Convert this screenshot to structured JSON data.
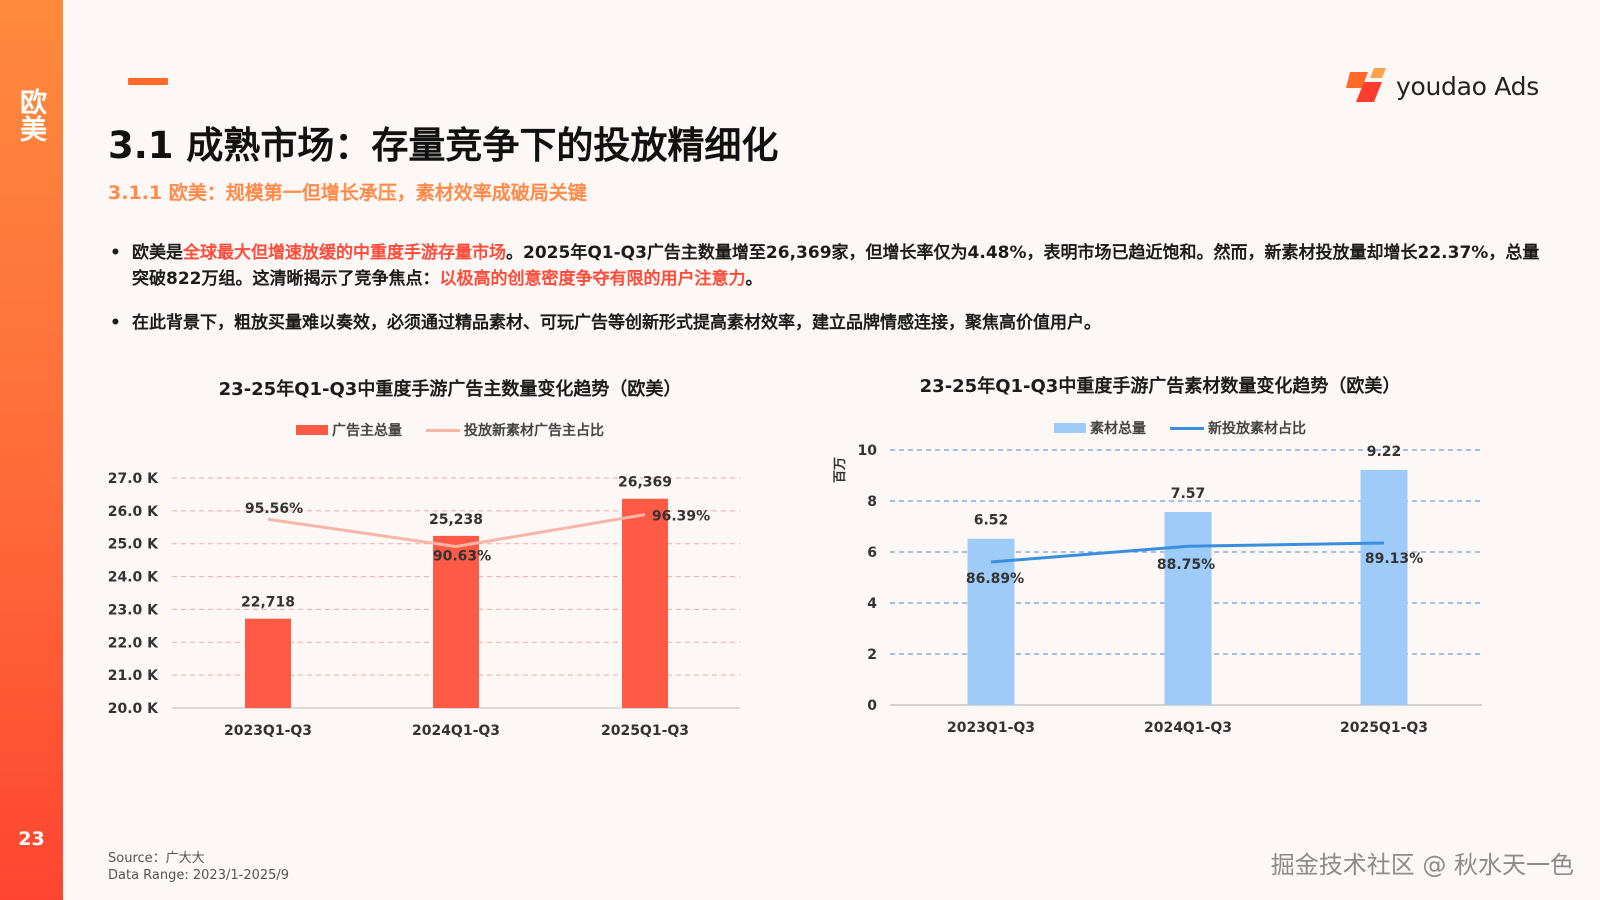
{
  "sidebar": {
    "region": "欧美",
    "page_number": "23"
  },
  "logo": {
    "text": "youdao Ads"
  },
  "header": {
    "title": "3.1 成熟市场：存量竞争下的投放精细化",
    "subtitle": "3.1.1 欧美：规模第一但增长承压，素材效率成破局关键"
  },
  "bullets": [
    {
      "dot": "•",
      "p1": "欧美是",
      "h1": "全球最大但增速放缓的中重度手游存量市场",
      "p2": "。2025年Q1-Q3广告主数量增至26,369家，但增长率仅为4.48%，表明市场已趋近饱和。然而，新素材投放量却增长22.37%，总量突破822万组。这清晰揭示了竞争焦点：",
      "h2": "以极高的创意密度争夺有限的用户注意力",
      "p3": "。"
    },
    {
      "dot": "•",
      "text": "在此背景下，粗放买量难以奏效，必须通过精品素材、可玩广告等创新形式提高素材效率，建立品牌情感连接，聚焦高价值用户。"
    }
  ],
  "colors": {
    "orange_accent": "#ff6a2b",
    "left_bar": "#ff5a45",
    "left_line": "#f7b6a6",
    "right_bar": "#9ecbf8",
    "right_line": "#3a8ee0"
  },
  "chart_data": [
    {
      "type": "bar",
      "title": "23-25年Q1-Q3中重度手游广告主数量变化趋势（欧美）",
      "categories": [
        "2023Q1-Q3",
        "2024Q1-Q3",
        "2025Q1-Q3"
      ],
      "ylim": [
        20000,
        27000
      ],
      "yticks": [
        "20.0 K",
        "21.0 K",
        "22.0 K",
        "23.0 K",
        "24.0 K",
        "25.0 K",
        "26.0 K",
        "27.0 K"
      ],
      "ylabel": "",
      "grid": true,
      "legend_position": "top",
      "series": [
        {
          "name": "广告主总量",
          "type": "bar",
          "values": [
            22718,
            25238,
            26369
          ],
          "labels": [
            "22,718",
            "25,238",
            "26,369"
          ]
        },
        {
          "name": "投放新素材广告主占比",
          "type": "line",
          "values": [
            95.56,
            90.63,
            96.39
          ],
          "labels": [
            "95.56%",
            "90.63%",
            "96.39%"
          ]
        }
      ]
    },
    {
      "type": "bar",
      "title": "23-25年Q1-Q3中重度手游广告素材数量变化趋势（欧美）",
      "categories": [
        "2023Q1-Q3",
        "2024Q1-Q3",
        "2025Q1-Q3"
      ],
      "ylim": [
        0,
        10
      ],
      "yticks": [
        "0",
        "2",
        "4",
        "6",
        "8",
        "10"
      ],
      "ylabel": "百万",
      "grid": true,
      "legend_position": "top",
      "series": [
        {
          "name": "素材总量",
          "type": "bar",
          "values": [
            6.52,
            7.57,
            9.22
          ],
          "labels": [
            "6.52",
            "7.57",
            "9.22"
          ]
        },
        {
          "name": "新投放素材占比",
          "type": "line",
          "values": [
            86.89,
            88.75,
            89.13
          ],
          "labels": [
            "86.89%",
            "88.75%",
            "89.13%"
          ]
        }
      ]
    }
  ],
  "footer": {
    "source": "Source：广大大",
    "data_range": "Data Range: 2023/1-2025/9",
    "watermark": "掘金技术社区 @ 秋水天一色"
  }
}
